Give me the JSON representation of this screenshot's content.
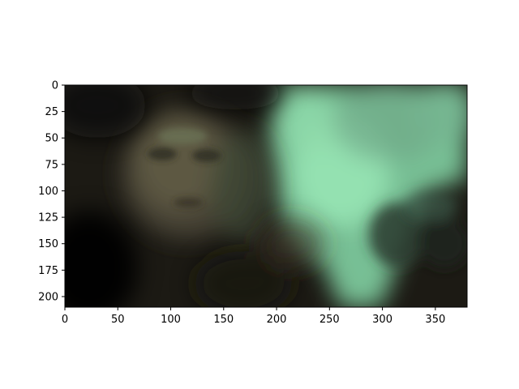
{
  "figure": {
    "background": "#ffffff"
  },
  "image_axes": {
    "xlim": [
      0,
      380
    ],
    "ylim": [
      210,
      0
    ],
    "x_ticks": [
      {
        "value": 0,
        "label": "0"
      },
      {
        "value": 50,
        "label": "50"
      },
      {
        "value": 100,
        "label": "100"
      },
      {
        "value": 150,
        "label": "150"
      },
      {
        "value": 200,
        "label": "200"
      },
      {
        "value": 250,
        "label": "250"
      },
      {
        "value": 300,
        "label": "300"
      },
      {
        "value": 350,
        "label": "350"
      }
    ],
    "y_ticks": [
      {
        "value": 0,
        "label": "0"
      },
      {
        "value": 25,
        "label": "25"
      },
      {
        "value": 50,
        "label": "50"
      },
      {
        "value": 75,
        "label": "75"
      },
      {
        "value": 100,
        "label": "100"
      },
      {
        "value": 125,
        "label": "125"
      },
      {
        "value": 150,
        "label": "150"
      },
      {
        "value": 175,
        "label": "175"
      },
      {
        "value": 200,
        "label": "200"
      }
    ]
  },
  "image_content": {
    "palette": {
      "dark": "#0a0a08",
      "shadow": "#1e1a14",
      "skin": "#5a5040",
      "mint": "#8fe0ae",
      "mint_mid": "#6fb58c",
      "teal_dark": "#2e4a3c"
    }
  }
}
